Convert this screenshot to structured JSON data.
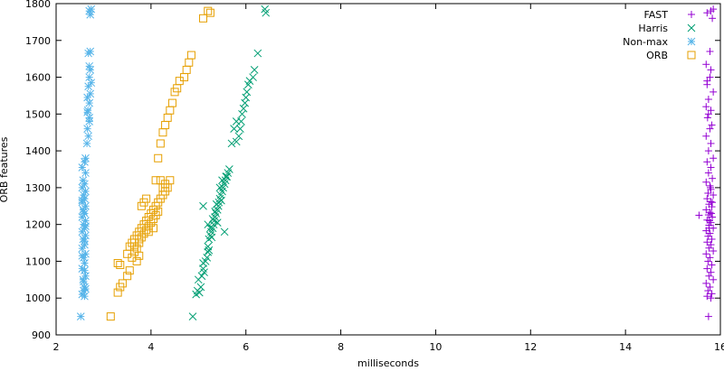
{
  "chart_data": {
    "type": "scatter",
    "xlabel": "milliseconds",
    "ylabel": "ORB features",
    "xlim": [
      2,
      16
    ],
    "ylim": [
      900,
      1800
    ],
    "xticks": [
      2,
      4,
      6,
      8,
      10,
      12,
      14,
      16
    ],
    "yticks": [
      900,
      1000,
      1100,
      1200,
      1300,
      1400,
      1500,
      1600,
      1700,
      1800
    ],
    "grid": false,
    "legend_position": "top-right",
    "series": [
      {
        "name": "FAST",
        "marker": "plus",
        "color": "#9400d3",
        "points": [
          [
            15.55,
            1225
          ],
          [
            15.75,
            950
          ],
          [
            15.8,
            1780
          ],
          [
            15.72,
            1775
          ],
          [
            15.85,
            1785
          ],
          [
            15.83,
            1760
          ],
          [
            15.78,
            1670
          ],
          [
            15.78,
            1600
          ],
          [
            15.7,
            1635
          ],
          [
            15.8,
            1620
          ],
          [
            15.72,
            1590
          ],
          [
            15.72,
            1580
          ],
          [
            15.85,
            1560
          ],
          [
            15.75,
            1540
          ],
          [
            15.7,
            1520
          ],
          [
            15.8,
            1510
          ],
          [
            15.75,
            1500
          ],
          [
            15.73,
            1490
          ],
          [
            15.82,
            1470
          ],
          [
            15.78,
            1460
          ],
          [
            15.7,
            1440
          ],
          [
            15.8,
            1420
          ],
          [
            15.75,
            1400
          ],
          [
            15.85,
            1380
          ],
          [
            15.72,
            1370
          ],
          [
            15.8,
            1355
          ],
          [
            15.75,
            1340
          ],
          [
            15.83,
            1325
          ],
          [
            15.7,
            1315
          ],
          [
            15.78,
            1305
          ],
          [
            15.8,
            1295
          ],
          [
            15.74,
            1285
          ],
          [
            15.85,
            1280
          ],
          [
            15.72,
            1270
          ],
          [
            15.8,
            1262
          ],
          [
            15.76,
            1255
          ],
          [
            15.82,
            1248
          ],
          [
            15.7,
            1240
          ],
          [
            15.78,
            1233
          ],
          [
            15.75,
            1226
          ],
          [
            15.83,
            1220
          ],
          [
            15.72,
            1212
          ],
          [
            15.8,
            1205
          ],
          [
            15.76,
            1198
          ],
          [
            15.85,
            1190
          ],
          [
            15.7,
            1183
          ],
          [
            15.78,
            1176
          ],
          [
            15.74,
            1168
          ],
          [
            15.82,
            1160
          ],
          [
            15.72,
            1152
          ],
          [
            15.8,
            1145
          ],
          [
            15.76,
            1136
          ],
          [
            15.85,
            1128
          ],
          [
            15.7,
            1120
          ],
          [
            15.78,
            1110
          ],
          [
            15.74,
            1100
          ],
          [
            15.82,
            1090
          ],
          [
            15.72,
            1080
          ],
          [
            15.8,
            1070
          ],
          [
            15.76,
            1060
          ],
          [
            15.85,
            1050
          ],
          [
            15.7,
            1040
          ],
          [
            15.78,
            1030
          ],
          [
            15.74,
            1020
          ],
          [
            15.82,
            1012
          ],
          [
            15.72,
            1005
          ],
          [
            15.8,
            1000
          ],
          [
            15.76,
            1190
          ],
          [
            15.83,
            1260
          ],
          [
            15.79,
            1300
          ],
          [
            15.81,
            1230
          ],
          [
            15.77,
            1210
          ]
        ]
      },
      {
        "name": "Harris",
        "marker": "cross",
        "color": "#009e73",
        "points": [
          [
            4.88,
            950
          ],
          [
            4.95,
            1010
          ],
          [
            4.98,
            1020
          ],
          [
            5.02,
            1015
          ],
          [
            5.05,
            1030
          ],
          [
            5.07,
            1060
          ],
          [
            5.1,
            1080
          ],
          [
            5.1,
            1095
          ],
          [
            5.15,
            1100
          ],
          [
            5.18,
            1110
          ],
          [
            5.2,
            1125
          ],
          [
            5.2,
            1140
          ],
          [
            5.22,
            1160
          ],
          [
            5.25,
            1170
          ],
          [
            5.27,
            1180
          ],
          [
            5.3,
            1190
          ],
          [
            5.32,
            1200
          ],
          [
            5.33,
            1210
          ],
          [
            5.35,
            1220
          ],
          [
            5.37,
            1230
          ],
          [
            5.4,
            1240
          ],
          [
            5.42,
            1250
          ],
          [
            5.43,
            1260
          ],
          [
            5.45,
            1270
          ],
          [
            5.47,
            1280
          ],
          [
            5.5,
            1290
          ],
          [
            5.52,
            1300
          ],
          [
            5.55,
            1310
          ],
          [
            5.57,
            1320
          ],
          [
            5.6,
            1330
          ],
          [
            5.62,
            1340
          ],
          [
            5.65,
            1350
          ],
          [
            5.2,
            1200
          ],
          [
            5.25,
            1190
          ],
          [
            5.3,
            1215
          ],
          [
            5.35,
            1235
          ],
          [
            5.28,
            1165
          ],
          [
            5.38,
            1255
          ],
          [
            5.45,
            1300
          ],
          [
            5.5,
            1320
          ],
          [
            5.1,
            1250
          ],
          [
            5.55,
            1180
          ],
          [
            5.0,
            1050
          ],
          [
            5.12,
            1070
          ],
          [
            5.22,
            1130
          ],
          [
            5.58,
            1330
          ],
          [
            5.48,
            1265
          ],
          [
            5.4,
            1205
          ],
          [
            5.8,
            1425
          ],
          [
            5.85,
            1440
          ],
          [
            5.88,
            1460
          ],
          [
            5.9,
            1480
          ],
          [
            5.92,
            1500
          ],
          [
            5.95,
            1515
          ],
          [
            5.98,
            1530
          ],
          [
            6.0,
            1545
          ],
          [
            6.02,
            1560
          ],
          [
            6.05,
            1580
          ],
          [
            6.08,
            1590
          ],
          [
            5.7,
            1420
          ],
          [
            5.75,
            1460
          ],
          [
            5.8,
            1480
          ],
          [
            6.15,
            1600
          ],
          [
            6.18,
            1620
          ],
          [
            6.25,
            1665
          ],
          [
            6.4,
            1785
          ],
          [
            6.42,
            1775
          ]
        ]
      },
      {
        "name": "Non-max",
        "marker": "star",
        "color": "#56b4e9",
        "points": [
          [
            2.52,
            950
          ],
          [
            2.55,
            1010
          ],
          [
            2.58,
            1020
          ],
          [
            2.6,
            1030
          ],
          [
            2.57,
            1050
          ],
          [
            2.62,
            1060
          ],
          [
            2.55,
            1080
          ],
          [
            2.6,
            1095
          ],
          [
            2.58,
            1110
          ],
          [
            2.62,
            1120
          ],
          [
            2.55,
            1135
          ],
          [
            2.6,
            1145
          ],
          [
            2.57,
            1160
          ],
          [
            2.62,
            1170
          ],
          [
            2.55,
            1180
          ],
          [
            2.6,
            1190
          ],
          [
            2.58,
            1200
          ],
          [
            2.62,
            1210
          ],
          [
            2.55,
            1220
          ],
          [
            2.6,
            1230
          ],
          [
            2.57,
            1240
          ],
          [
            2.62,
            1250
          ],
          [
            2.55,
            1260
          ],
          [
            2.6,
            1270
          ],
          [
            2.58,
            1280
          ],
          [
            2.62,
            1290
          ],
          [
            2.55,
            1300
          ],
          [
            2.6,
            1310
          ],
          [
            2.57,
            1320
          ],
          [
            2.62,
            1340
          ],
          [
            2.55,
            1355
          ],
          [
            2.6,
            1370
          ],
          [
            2.62,
            1380
          ],
          [
            2.65,
            1420
          ],
          [
            2.68,
            1440
          ],
          [
            2.66,
            1460
          ],
          [
            2.7,
            1490
          ],
          [
            2.67,
            1510
          ],
          [
            2.7,
            1530
          ],
          [
            2.66,
            1545
          ],
          [
            2.72,
            1555
          ],
          [
            2.68,
            1575
          ],
          [
            2.74,
            1585
          ],
          [
            2.7,
            1600
          ],
          [
            2.72,
            1620
          ],
          [
            2.7,
            1630
          ],
          [
            2.68,
            1665
          ],
          [
            2.72,
            1670
          ],
          [
            2.7,
            1780
          ],
          [
            2.72,
            1770
          ],
          [
            2.74,
            1785
          ],
          [
            2.6,
            1005
          ],
          [
            2.55,
            1265
          ],
          [
            2.58,
            1235
          ],
          [
            2.62,
            1195
          ],
          [
            2.6,
            1155
          ],
          [
            2.55,
            1115
          ],
          [
            2.6,
            1075
          ],
          [
            2.58,
            1045
          ],
          [
            2.62,
            1025
          ],
          [
            2.66,
            1505
          ],
          [
            2.7,
            1480
          ]
        ]
      },
      {
        "name": "ORB",
        "marker": "square",
        "color": "#e69f00",
        "points": [
          [
            3.15,
            950
          ],
          [
            3.3,
            1015
          ],
          [
            3.35,
            1030
          ],
          [
            3.4,
            1040
          ],
          [
            3.3,
            1095
          ],
          [
            3.35,
            1090
          ],
          [
            3.5,
            1120
          ],
          [
            3.55,
            1140
          ],
          [
            3.6,
            1150
          ],
          [
            3.65,
            1160
          ],
          [
            3.7,
            1170
          ],
          [
            3.75,
            1180
          ],
          [
            3.8,
            1190
          ],
          [
            3.85,
            1200
          ],
          [
            3.9,
            1210
          ],
          [
            3.95,
            1220
          ],
          [
            4.0,
            1230
          ],
          [
            4.05,
            1240
          ],
          [
            4.1,
            1250
          ],
          [
            4.15,
            1260
          ],
          [
            4.2,
            1270
          ],
          [
            4.25,
            1280
          ],
          [
            4.3,
            1290
          ],
          [
            4.35,
            1300
          ],
          [
            3.6,
            1110
          ],
          [
            3.65,
            1125
          ],
          [
            3.7,
            1135
          ],
          [
            3.75,
            1150
          ],
          [
            3.8,
            1165
          ],
          [
            3.85,
            1175
          ],
          [
            3.9,
            1185
          ],
          [
            3.95,
            1195
          ],
          [
            4.0,
            1205
          ],
          [
            4.05,
            1215
          ],
          [
            4.1,
            1225
          ],
          [
            4.15,
            1235
          ],
          [
            3.7,
            1100
          ],
          [
            3.75,
            1115
          ],
          [
            3.5,
            1060
          ],
          [
            3.55,
            1075
          ],
          [
            3.8,
            1250
          ],
          [
            3.85,
            1260
          ],
          [
            3.9,
            1270
          ],
          [
            4.1,
            1320
          ],
          [
            4.2,
            1320
          ],
          [
            4.3,
            1310
          ],
          [
            4.4,
            1320
          ],
          [
            4.15,
            1380
          ],
          [
            4.2,
            1420
          ],
          [
            4.25,
            1450
          ],
          [
            4.3,
            1470
          ],
          [
            4.35,
            1490
          ],
          [
            4.4,
            1510
          ],
          [
            4.45,
            1530
          ],
          [
            4.5,
            1560
          ],
          [
            4.55,
            1570
          ],
          [
            4.6,
            1590
          ],
          [
            4.7,
            1600
          ],
          [
            4.75,
            1620
          ],
          [
            4.8,
            1640
          ],
          [
            4.85,
            1660
          ],
          [
            5.2,
            1780
          ],
          [
            5.25,
            1775
          ],
          [
            5.1,
            1760
          ],
          [
            3.95,
            1180
          ],
          [
            4.05,
            1190
          ],
          [
            3.65,
            1140
          ],
          [
            3.75,
            1160
          ],
          [
            4.25,
            1300
          ]
        ]
      }
    ]
  }
}
